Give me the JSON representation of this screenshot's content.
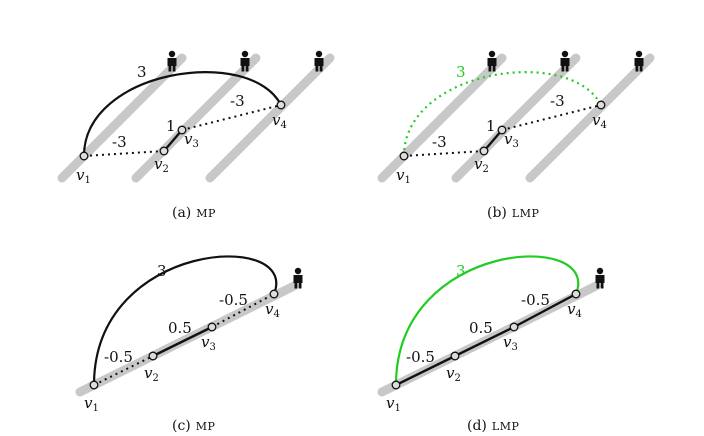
{
  "colors": {
    "highlight": "#22cc22",
    "track": "#c8c8c8",
    "ink": "#111111",
    "node_fill": "#dddddd"
  },
  "icons": {
    "person": "person-icon"
  },
  "panels": {
    "a": {
      "caption_letter": "(a)",
      "caption_name": "MP",
      "weights": {
        "w12": "-3",
        "w23": "1",
        "w34": "-3",
        "w14": "3"
      },
      "nodes": {
        "v1": "v",
        "v2": "v",
        "v3": "v",
        "v4": "v",
        "s1": "1",
        "s2": "2",
        "s3": "3",
        "s4": "4"
      }
    },
    "b": {
      "caption_letter": "(b)",
      "caption_name": "LMP",
      "weights": {
        "w12": "-3",
        "w23": "1",
        "w34": "-3",
        "w14": "3"
      },
      "nodes": {
        "v1": "v",
        "v2": "v",
        "v3": "v",
        "v4": "v",
        "s1": "1",
        "s2": "2",
        "s3": "3",
        "s4": "4"
      }
    },
    "c": {
      "caption_letter": "(c)",
      "caption_name": "MP",
      "weights": {
        "w12": "-0.5",
        "w23": "0.5",
        "w34": "-0.5",
        "w14": "3"
      },
      "nodes": {
        "v1": "v",
        "v2": "v",
        "v3": "v",
        "v4": "v",
        "s1": "1",
        "s2": "2",
        "s3": "3",
        "s4": "4"
      }
    },
    "d": {
      "caption_letter": "(d)",
      "caption_name": "LMP",
      "weights": {
        "w12": "-0.5",
        "w23": "0.5",
        "w34": "-0.5",
        "w14": "3"
      },
      "nodes": {
        "v1": "v",
        "v2": "v",
        "v3": "v",
        "v4": "v",
        "s1": "1",
        "s2": "2",
        "s3": "3",
        "s4": "4"
      }
    }
  }
}
